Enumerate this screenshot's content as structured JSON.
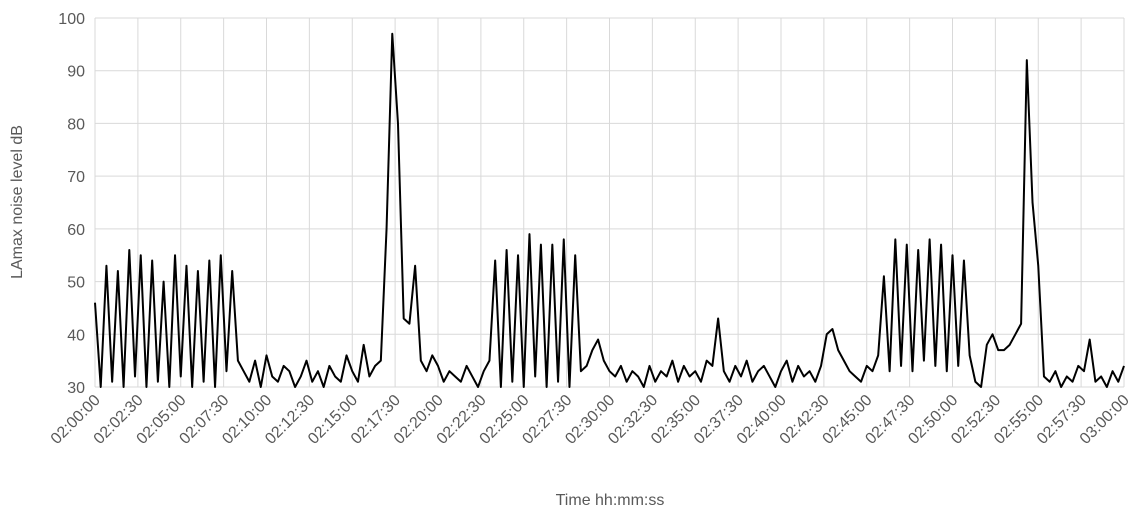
{
  "chart_data": {
    "type": "line",
    "y_label": "LAmax noise level dB",
    "x_label": "Time hh:mm:ss",
    "color": "#000000",
    "grid": true,
    "ylim": [
      30,
      100
    ],
    "yticks": [
      30,
      40,
      50,
      60,
      70,
      80,
      90,
      100
    ],
    "xlim": [
      "02:00:00",
      "03:00:00"
    ],
    "xticks": [
      "02:00:00",
      "02:02:30",
      "02:05:00",
      "02:07:30",
      "02:10:00",
      "02:12:30",
      "02:15:00",
      "02:17:30",
      "02:20:00",
      "02:22:30",
      "02:25:00",
      "02:27:30",
      "02:30:00",
      "02:32:30",
      "02:35:00",
      "02:37:30",
      "02:40:00",
      "02:42:30",
      "02:45:00",
      "02:47:30",
      "02:50:00",
      "02:52:30",
      "02:55:00",
      "02:57:30",
      "03:00:00"
    ],
    "x": [
      "02:00:00",
      "02:00:20",
      "02:00:40",
      "02:01:00",
      "02:01:20",
      "02:01:40",
      "02:02:00",
      "02:02:20",
      "02:02:40",
      "02:03:00",
      "02:03:20",
      "02:03:40",
      "02:04:00",
      "02:04:20",
      "02:04:40",
      "02:05:00",
      "02:05:20",
      "02:05:40",
      "02:06:00",
      "02:06:20",
      "02:06:40",
      "02:07:00",
      "02:07:20",
      "02:07:40",
      "02:08:00",
      "02:08:20",
      "02:08:40",
      "02:09:00",
      "02:09:20",
      "02:09:40",
      "02:10:00",
      "02:10:20",
      "02:10:40",
      "02:11:00",
      "02:11:20",
      "02:11:40",
      "02:12:00",
      "02:12:20",
      "02:12:40",
      "02:13:00",
      "02:13:20",
      "02:13:40",
      "02:14:00",
      "02:14:20",
      "02:14:40",
      "02:15:00",
      "02:15:20",
      "02:15:40",
      "02:16:00",
      "02:16:20",
      "02:16:40",
      "02:17:00",
      "02:17:20",
      "02:17:40",
      "02:18:00",
      "02:18:20",
      "02:18:40",
      "02:19:00",
      "02:19:20",
      "02:19:40",
      "02:20:00",
      "02:20:20",
      "02:20:40",
      "02:21:00",
      "02:21:20",
      "02:21:40",
      "02:22:00",
      "02:22:20",
      "02:22:40",
      "02:23:00",
      "02:23:20",
      "02:23:40",
      "02:24:00",
      "02:24:20",
      "02:24:40",
      "02:25:00",
      "02:25:20",
      "02:25:40",
      "02:26:00",
      "02:26:20",
      "02:26:40",
      "02:27:00",
      "02:27:20",
      "02:27:40",
      "02:28:00",
      "02:28:20",
      "02:28:40",
      "02:29:00",
      "02:29:20",
      "02:29:40",
      "02:30:00",
      "02:30:20",
      "02:30:40",
      "02:31:00",
      "02:31:20",
      "02:31:40",
      "02:32:00",
      "02:32:20",
      "02:32:40",
      "02:33:00",
      "02:33:20",
      "02:33:40",
      "02:34:00",
      "02:34:20",
      "02:34:40",
      "02:35:00",
      "02:35:20",
      "02:35:40",
      "02:36:00",
      "02:36:20",
      "02:36:40",
      "02:37:00",
      "02:37:20",
      "02:37:40",
      "02:38:00",
      "02:38:20",
      "02:38:40",
      "02:39:00",
      "02:39:20",
      "02:39:40",
      "02:40:00",
      "02:40:20",
      "02:40:40",
      "02:41:00",
      "02:41:20",
      "02:41:40",
      "02:42:00",
      "02:42:20",
      "02:42:40",
      "02:43:00",
      "02:43:20",
      "02:43:40",
      "02:44:00",
      "02:44:20",
      "02:44:40",
      "02:45:00",
      "02:45:20",
      "02:45:40",
      "02:46:00",
      "02:46:20",
      "02:46:40",
      "02:47:00",
      "02:47:20",
      "02:47:40",
      "02:48:00",
      "02:48:20",
      "02:48:40",
      "02:49:00",
      "02:49:20",
      "02:49:40",
      "02:50:00",
      "02:50:20",
      "02:50:40",
      "02:51:00",
      "02:51:20",
      "02:51:40",
      "02:52:00",
      "02:52:20",
      "02:52:40",
      "02:53:00",
      "02:53:20",
      "02:53:40",
      "02:54:00",
      "02:54:20",
      "02:54:40",
      "02:55:00",
      "02:55:20",
      "02:55:40",
      "02:56:00",
      "02:56:20",
      "02:56:40",
      "02:57:00",
      "02:57:20",
      "02:57:40",
      "02:58:00",
      "02:58:20",
      "02:58:40",
      "02:59:00",
      "02:59:20",
      "02:59:40",
      "03:00:00"
    ],
    "values": [
      46,
      30,
      53,
      31,
      52,
      30,
      56,
      32,
      55,
      30,
      54,
      31,
      50,
      30,
      55,
      32,
      53,
      30,
      52,
      31,
      54,
      30,
      55,
      33,
      52,
      35,
      33,
      31,
      35,
      30,
      36,
      32,
      31,
      34,
      33,
      30,
      32,
      35,
      31,
      33,
      30,
      34,
      32,
      31,
      36,
      33,
      31,
      38,
      32,
      34,
      35,
      60,
      97,
      80,
      43,
      42,
      53,
      35,
      33,
      36,
      34,
      31,
      33,
      32,
      31,
      34,
      32,
      30,
      33,
      35,
      54,
      30,
      56,
      31,
      55,
      30,
      59,
      32,
      57,
      30,
      57,
      31,
      58,
      30,
      55,
      33,
      34,
      37,
      39,
      35,
      33,
      32,
      34,
      31,
      33,
      32,
      30,
      34,
      31,
      33,
      32,
      35,
      31,
      34,
      32,
      33,
      31,
      35,
      34,
      43,
      33,
      31,
      34,
      32,
      35,
      31,
      33,
      34,
      32,
      30,
      33,
      35,
      31,
      34,
      32,
      33,
      31,
      34,
      40,
      41,
      37,
      35,
      33,
      32,
      31,
      34,
      33,
      36,
      51,
      33,
      58,
      34,
      57,
      33,
      56,
      35,
      58,
      34,
      57,
      33,
      55,
      34,
      54,
      36,
      31,
      30,
      38,
      40,
      37,
      37,
      38,
      40,
      42,
      92,
      65,
      53,
      32,
      31,
      33,
      30,
      32,
      31,
      34,
      33,
      39,
      31,
      32,
      30,
      33,
      31,
      34
    ]
  }
}
